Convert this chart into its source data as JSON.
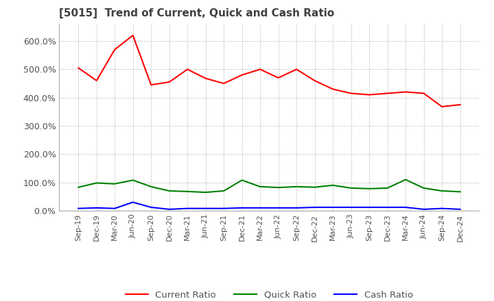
{
  "title": "[5015]  Trend of Current, Quick and Cash Ratio",
  "ylim": [
    0,
    660
  ],
  "yticks": [
    0,
    100,
    200,
    300,
    400,
    500,
    600
  ],
  "ytick_labels": [
    "0.0%",
    "100.0%",
    "200.0%",
    "300.0%",
    "400.0%",
    "500.0%",
    "600.0%"
  ],
  "x_labels": [
    "Sep-19",
    "Dec-19",
    "Mar-20",
    "Jun-20",
    "Sep-20",
    "Dec-20",
    "Mar-21",
    "Jun-21",
    "Sep-21",
    "Dec-21",
    "Mar-22",
    "Jun-22",
    "Sep-22",
    "Dec-22",
    "Mar-23",
    "Jun-23",
    "Sep-23",
    "Dec-23",
    "Mar-24",
    "Jun-24",
    "Sep-24",
    "Dec-24"
  ],
  "current_ratio": [
    505,
    460,
    570,
    620,
    445,
    455,
    500,
    468,
    450,
    480,
    500,
    470,
    500,
    460,
    430,
    415,
    410,
    415,
    420,
    415,
    368,
    375
  ],
  "quick_ratio": [
    83,
    98,
    95,
    108,
    85,
    70,
    68,
    65,
    70,
    108,
    85,
    82,
    85,
    83,
    90,
    80,
    78,
    80,
    110,
    80,
    70,
    67
  ],
  "cash_ratio": [
    8,
    10,
    8,
    30,
    12,
    5,
    8,
    8,
    8,
    10,
    10,
    10,
    10,
    12,
    12,
    12,
    12,
    12,
    12,
    5,
    8,
    5
  ],
  "current_color": "#ff0000",
  "quick_color": "#008000",
  "cash_color": "#0000ff",
  "bg_color": "#ffffff",
  "grid_color": "#b0b0b0",
  "title_color": "#404040",
  "legend_labels": [
    "Current Ratio",
    "Quick Ratio",
    "Cash Ratio"
  ]
}
